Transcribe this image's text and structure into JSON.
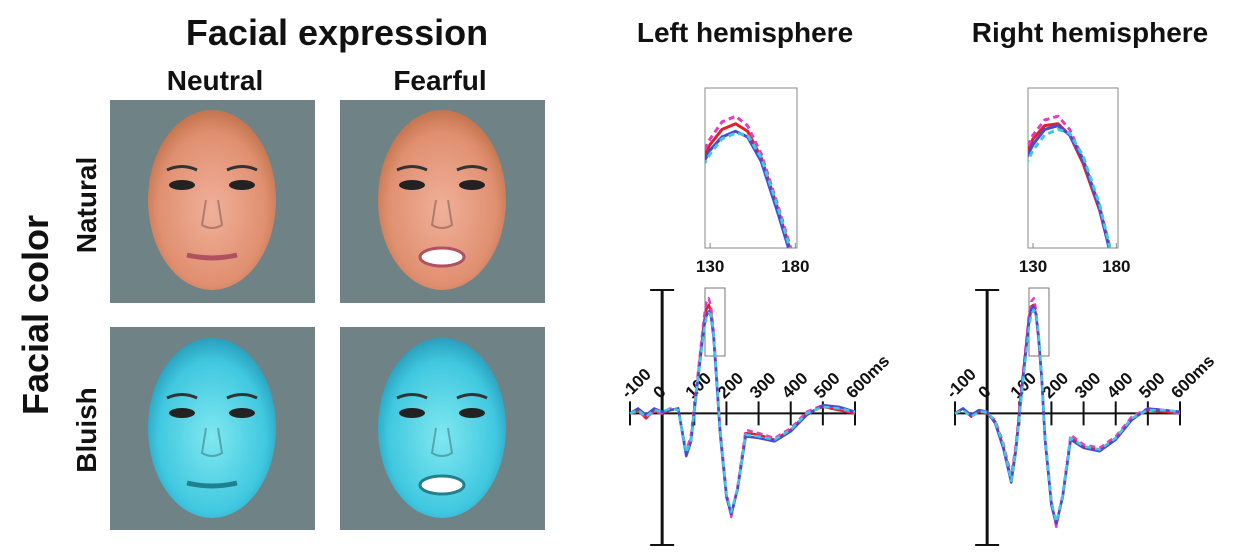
{
  "labels": {
    "expression_title": "Facial expression",
    "neutral": "Neutral",
    "fearful": "Fearful",
    "color_title": "Facial color",
    "natural": "Natural",
    "bluish": "Bluish"
  },
  "chart_data": [
    {
      "type": "line",
      "title": "Left hemisphere",
      "x": [
        -100,
        -75,
        -50,
        -25,
        0,
        25,
        50,
        75,
        90,
        110,
        130,
        137,
        145,
        152,
        160,
        170,
        180,
        200,
        215,
        235,
        260,
        300,
        350,
        400,
        450,
        500,
        550,
        600
      ],
      "xlim": [
        -100,
        600
      ],
      "ylim": [
        -8,
        7.5
      ],
      "xticks": [
        -100,
        0,
        100,
        200,
        300,
        400,
        500,
        {
          "value": 600,
          "label": "600ms"
        }
      ],
      "inset": {
        "xlim": [
          127,
          181
        ],
        "ylim": [
          0,
          8.5
        ],
        "xticks": [
          130,
          180
        ]
      },
      "series": [
        {
          "color": "#e0202a",
          "dashed": false,
          "values": [
            0,
            0.2,
            -0.3,
            0.2,
            0,
            0.2,
            0.3,
            -2.5,
            -1.5,
            2,
            5.5,
            6.3,
            6.6,
            6.2,
            4.8,
            2,
            -1,
            -5,
            -6.2,
            -4.5,
            -1.2,
            -1.3,
            -1.6,
            -1,
            0,
            0.4,
            0.2,
            0
          ]
        },
        {
          "color": "#e040c0",
          "dashed": true,
          "values": [
            0,
            0.1,
            -0.2,
            0.1,
            0,
            0.3,
            0.2,
            -2.3,
            -1.3,
            2.2,
            5.8,
            6.7,
            7,
            6.5,
            5,
            2.2,
            -0.8,
            -4.8,
            -6.3,
            -4.4,
            -1,
            -1.2,
            -1.5,
            -0.9,
            0.1,
            0.5,
            0.3,
            0
          ]
        },
        {
          "color": "#4a4ad0",
          "dashed": false,
          "values": [
            0,
            0.3,
            -0.1,
            0.3,
            0.1,
            0.2,
            0.3,
            -2.6,
            -1.7,
            1.8,
            5.2,
            5.9,
            6.2,
            5.9,
            4.6,
            1.8,
            -1.2,
            -5.1,
            -6.1,
            -4.6,
            -1.4,
            -1.5,
            -1.7,
            -1.1,
            -0.1,
            0.5,
            0.4,
            0.1
          ]
        },
        {
          "color": "#40c8e0",
          "dashed": true,
          "values": [
            0,
            0.2,
            -0.2,
            0.2,
            0.1,
            0.3,
            0.2,
            -2.4,
            -1.6,
            1.9,
            5,
            5.8,
            6.1,
            6,
            4.8,
            2.1,
            -1,
            -4.9,
            -6,
            -4.5,
            -1.3,
            -1.4,
            -1.6,
            -1,
            0,
            0.4,
            0.3,
            0.1
          ]
        }
      ]
    },
    {
      "type": "line",
      "title": "Right hemisphere",
      "x": [
        -100,
        -75,
        -50,
        -25,
        0,
        25,
        50,
        75,
        90,
        110,
        130,
        137,
        145,
        152,
        160,
        170,
        180,
        200,
        215,
        235,
        260,
        300,
        350,
        400,
        450,
        500,
        550,
        600
      ],
      "xlim": [
        -100,
        600
      ],
      "ylim": [
        -8,
        7.5
      ],
      "xticks": [
        -100,
        0,
        100,
        200,
        300,
        400,
        500,
        {
          "value": 600,
          "label": "600ms"
        }
      ],
      "inset": {
        "xlim": [
          127,
          181
        ],
        "ylim": [
          0,
          8.5
        ],
        "xticks": [
          130,
          180
        ]
      },
      "series": [
        {
          "color": "#e0202a",
          "dashed": false,
          "values": [
            0,
            0.3,
            -0.2,
            0.1,
            0,
            -0.5,
            -2,
            -4,
            -2,
            2,
            5.8,
            6.5,
            6.6,
            6,
            4.5,
            2,
            -1.5,
            -5.5,
            -6.8,
            -5,
            -1.5,
            -2,
            -2.2,
            -1.5,
            -0.3,
            0.2,
            0.1,
            0
          ]
        },
        {
          "color": "#e040c0",
          "dashed": true,
          "values": [
            0,
            0.2,
            -0.1,
            0.2,
            0,
            -0.4,
            -1.8,
            -3.8,
            -1.8,
            2.2,
            6,
            6.8,
            7,
            6.3,
            4.7,
            2.2,
            -1.3,
            -5.3,
            -6.9,
            -4.9,
            -1.3,
            -1.9,
            -2.1,
            -1.4,
            -0.2,
            0.3,
            0.2,
            0
          ]
        },
        {
          "color": "#4a4ad0",
          "dashed": false,
          "values": [
            0,
            0.3,
            -0.1,
            0.2,
            0.1,
            -0.6,
            -2.1,
            -4.2,
            -2.2,
            1.8,
            5.5,
            6.3,
            6.5,
            6,
            4.7,
            2.1,
            -1.6,
            -5.6,
            -6.7,
            -5.1,
            -1.6,
            -2.1,
            -2.3,
            -1.6,
            -0.4,
            0.3,
            0.2,
            0.1
          ]
        },
        {
          "color": "#40c8e0",
          "dashed": true,
          "values": [
            0,
            0.2,
            -0.2,
            0.1,
            0.1,
            -0.5,
            -1.9,
            -4.1,
            -2.1,
            1.6,
            5.2,
            6,
            6.3,
            6.1,
            4.9,
            2.3,
            -1.4,
            -5.4,
            -6.6,
            -5,
            -1.5,
            -2,
            -2.2,
            -1.5,
            -0.3,
            0.2,
            0.2,
            0.1
          ]
        }
      ]
    }
  ]
}
